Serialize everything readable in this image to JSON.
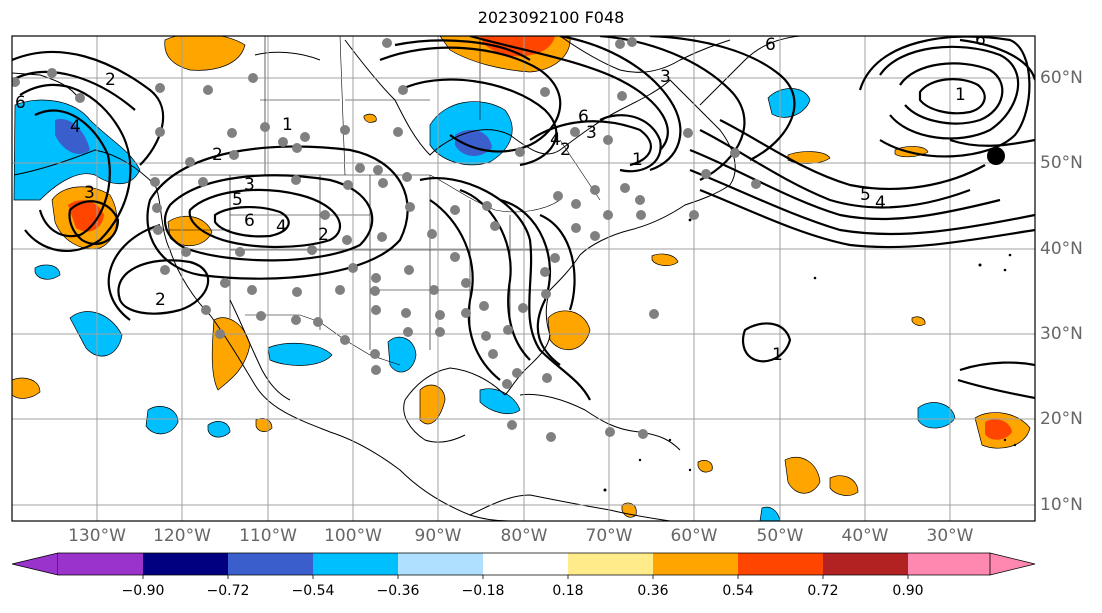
{
  "title": "2023092100 F048",
  "longitude_labels": [
    "130°W",
    "120°W",
    "110°W",
    "100°W",
    "90°W",
    "80°W",
    "70°W",
    "60°W",
    "50°W",
    "40°W",
    "30°W"
  ],
  "latitude_labels": [
    "60°N",
    "50°N",
    "40°N",
    "30°N",
    "20°N",
    "10°N"
  ],
  "contour_labels": [
    "1",
    "2",
    "3",
    "4",
    "5",
    "6"
  ],
  "colorbar": {
    "tick_labels": [
      "−0.90",
      "−0.72",
      "−0.54",
      "−0.36",
      "−0.18",
      "0.18",
      "0.36",
      "0.54",
      "0.72",
      "0.90"
    ],
    "colors": [
      "#9933cc",
      "#000080",
      "#3a5fcd",
      "#00bfff",
      "#b0e0ff",
      "#ffffff",
      "#ffeb8a",
      "#ffa500",
      "#ff4500",
      "#b22222",
      "#ff88b0"
    ]
  },
  "colors": {
    "grid": "#a0a0a0",
    "contour": "#000000",
    "station_dot": "#808080"
  }
}
